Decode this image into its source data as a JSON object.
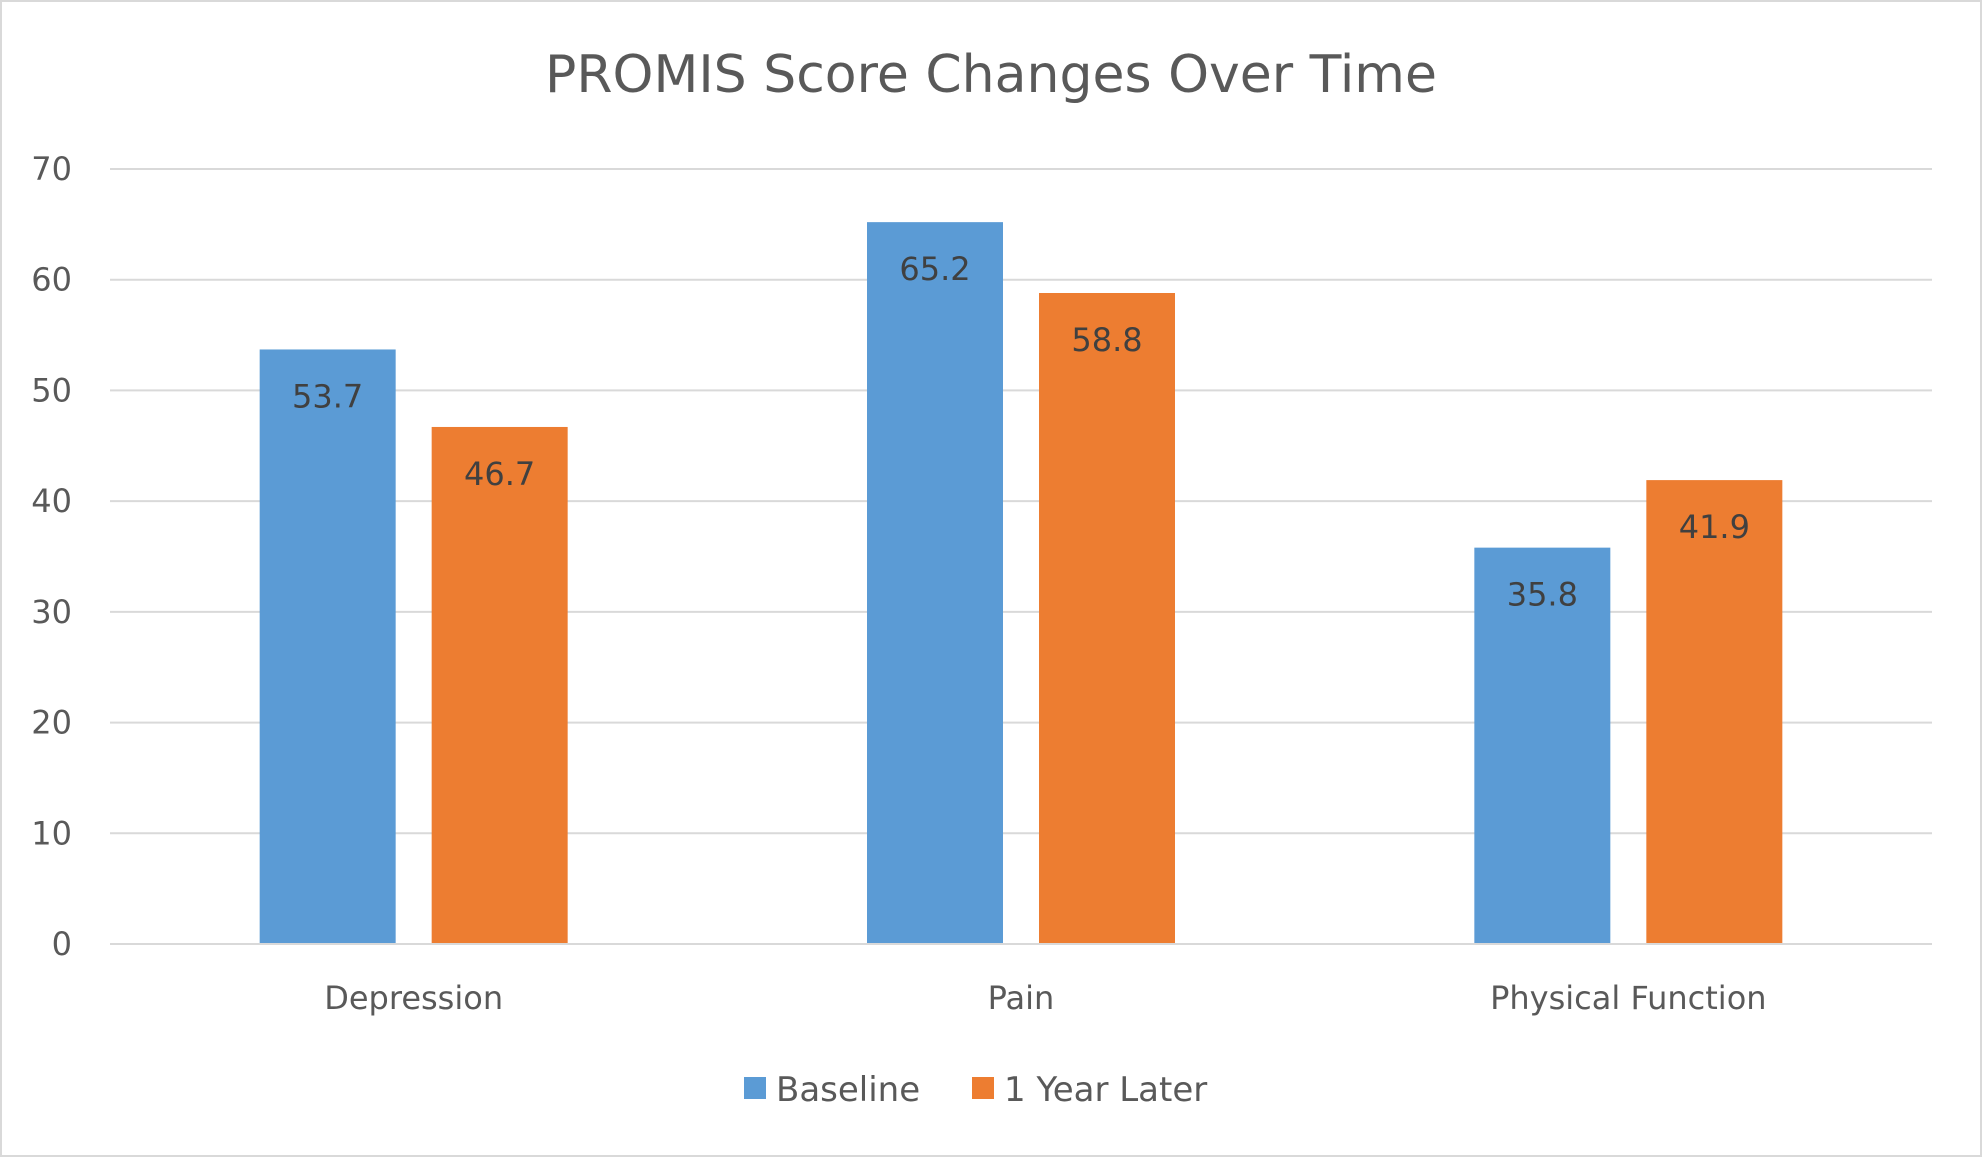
{
  "chart_data": {
    "type": "bar",
    "title": "PROMIS Score Changes Over Time",
    "categories": [
      "Depression",
      "Pain",
      "Physical Function"
    ],
    "series": [
      {
        "name": "Baseline",
        "color": "#5b9bd5",
        "values": [
          53.7,
          65.2,
          35.8
        ]
      },
      {
        "name": "1 Year Later",
        "color": "#ed7d31",
        "values": [
          46.7,
          58.8,
          41.9
        ]
      }
    ],
    "ylim": [
      0,
      70
    ],
    "yticks": [
      0,
      10,
      20,
      30,
      40,
      50,
      60,
      70
    ],
    "grid": true,
    "legend_position": "bottom",
    "data_labels": true,
    "xlabel": "",
    "ylabel": ""
  }
}
